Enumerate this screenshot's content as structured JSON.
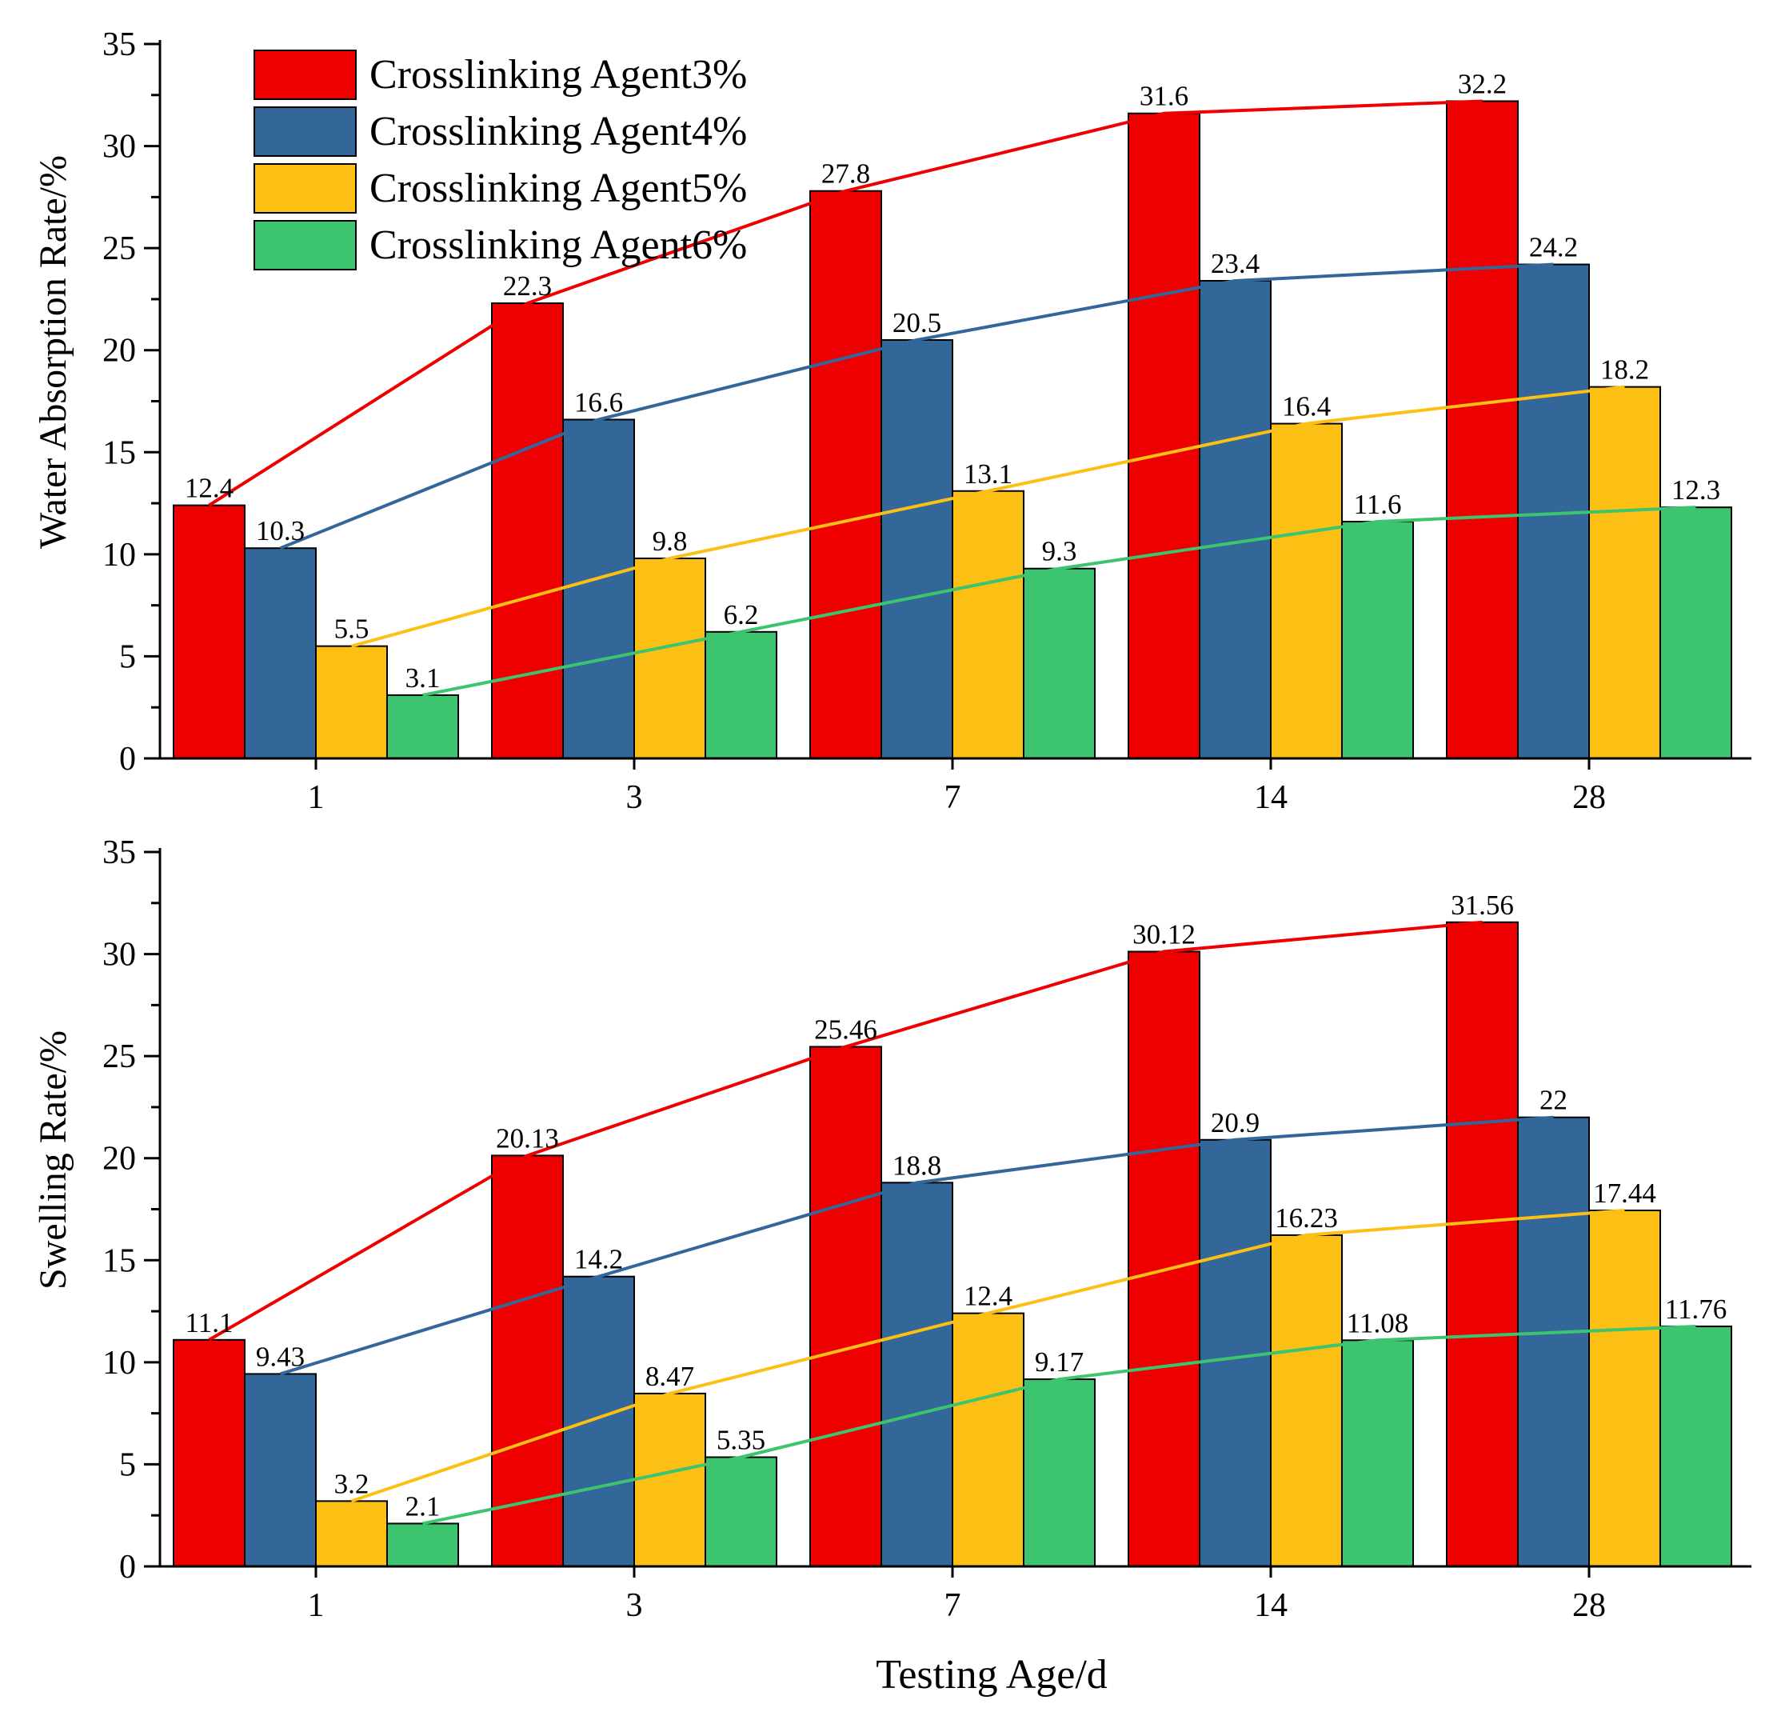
{
  "chart_data": [
    {
      "type": "bar",
      "title": "",
      "xlabel": "",
      "ylabel": "Water Absorption Rate/%",
      "ylim": [
        0,
        35
      ],
      "yticks": [
        0,
        5,
        10,
        15,
        20,
        25,
        30,
        35
      ],
      "categories": [
        "1",
        "3",
        "7",
        "14",
        "28"
      ],
      "legend_position": "top-left",
      "trend_lines": true,
      "series": [
        {
          "name": "Crosslinking Agent3%",
          "color": "#ee0000",
          "values": [
            12.4,
            22.3,
            27.8,
            31.6,
            32.2
          ],
          "labels": [
            "12.4",
            "22.3",
            "27.8",
            "31.6",
            "32.2"
          ]
        },
        {
          "name": "Crosslinking Agent4%",
          "color": "#336699",
          "values": [
            10.3,
            16.6,
            20.5,
            23.4,
            24.2
          ],
          "labels": [
            "10.3",
            "16.6",
            "20.5",
            "23.4",
            "24.2"
          ]
        },
        {
          "name": "Crosslinking Agent5%",
          "color": "#fcc014",
          "values": [
            5.5,
            9.8,
            13.1,
            16.4,
            18.2
          ],
          "labels": [
            "5.5",
            "9.8",
            "13.1",
            "16.4",
            "18.2"
          ]
        },
        {
          "name": "Crosslinking Agent6%",
          "color": "#3cc46e",
          "values": [
            3.1,
            6.2,
            9.3,
            11.6,
            12.3
          ],
          "labels": [
            "3.1",
            "6.2",
            "9.3",
            "11.6",
            "12.3"
          ]
        }
      ]
    },
    {
      "type": "bar",
      "title": "",
      "xlabel": "Testing Age/d",
      "ylabel": "Swelling Rate/%",
      "ylim": [
        0,
        35
      ],
      "yticks": [
        0,
        5,
        10,
        15,
        20,
        25,
        30,
        35
      ],
      "categories": [
        "1",
        "3",
        "7",
        "14",
        "28"
      ],
      "trend_lines": true,
      "series": [
        {
          "name": "Crosslinking Agent3%",
          "color": "#ee0000",
          "values": [
            11.1,
            20.13,
            25.46,
            30.12,
            31.56
          ],
          "labels": [
            "11.1",
            "20.13",
            "25.46",
            "30.12",
            "31.56"
          ]
        },
        {
          "name": "Crosslinking Agent4%",
          "color": "#336699",
          "values": [
            9.43,
            14.2,
            18.8,
            20.9,
            22
          ],
          "labels": [
            "9.43",
            "14.2",
            "18.8",
            "20.9",
            "22"
          ]
        },
        {
          "name": "Crosslinking Agent5%",
          "color": "#fcc014",
          "values": [
            3.2,
            8.47,
            12.4,
            16.23,
            17.44
          ],
          "labels": [
            "3.2",
            "8.47",
            "12.4",
            "16.23",
            "17.44"
          ]
        },
        {
          "name": "Crosslinking Agent6%",
          "color": "#3cc46e",
          "values": [
            2.1,
            5.35,
            9.17,
            11.08,
            11.76
          ],
          "labels": [
            "2.1",
            "5.35",
            "9.17",
            "11.08",
            "11.76"
          ]
        }
      ]
    }
  ]
}
